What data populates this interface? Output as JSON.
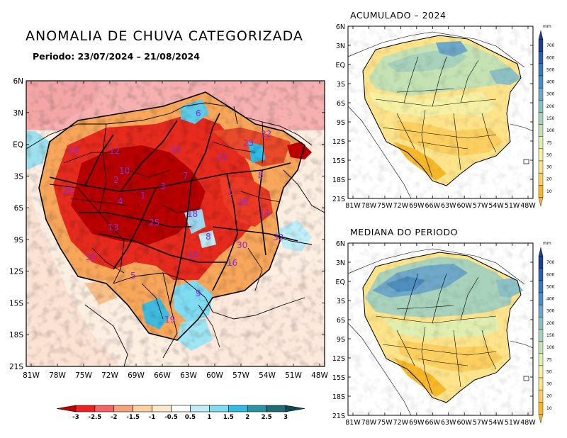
{
  "main_map": {
    "title": "ANOMALIA DE CHUVA CATEGORIZADA",
    "period": "Periodo: 23/07/2024 – 21/08/2024",
    "lat_ticks": [
      "6N",
      "3N",
      "EQ",
      "3S",
      "6S",
      "9S",
      "12S",
      "15S",
      "18S",
      "21S"
    ],
    "lon_ticks": [
      "81W",
      "78W",
      "75W",
      "72W",
      "69W",
      "66W",
      "63W",
      "60W",
      "57W",
      "54W",
      "51W",
      "48W"
    ],
    "basin_labels": [
      "6",
      "22",
      "12",
      "23",
      "24",
      "21",
      "23",
      "10",
      "8",
      "2",
      "26",
      "7",
      "3",
      "1",
      "4",
      "28",
      "11",
      "18",
      "13",
      "25",
      "8",
      "32",
      "30",
      "16",
      "31",
      "14",
      "5",
      "9",
      "19",
      "1"
    ],
    "colorbar": {
      "labels": [
        "-3",
        "-2.5",
        "-2",
        "-1.5",
        "-1",
        "-0.5",
        "0.5",
        "1",
        "1.5",
        "2",
        "2.5",
        "3"
      ],
      "colors": [
        "#c10000",
        "#ef2020",
        "#f46464",
        "#f6a37a",
        "#fbd0a0",
        "#ffe9c8",
        "#ffffff",
        "#bfeef8",
        "#7fdcf2",
        "#2fbde6",
        "#2994a6",
        "#1c6e74",
        "#0d4a50"
      ]
    }
  },
  "accumulated_map": {
    "title": "ACUMULADO – 2024",
    "lat_ticks": [
      "6N",
      "3N",
      "EQ",
      "3S",
      "6S",
      "9S",
      "12S",
      "15S",
      "18S",
      "21S"
    ],
    "lon_ticks": [
      "81W",
      "78W",
      "75W",
      "72W",
      "69W",
      "66W",
      "63W",
      "60W",
      "57W",
      "54W",
      "51W",
      "48W"
    ]
  },
  "median_map": {
    "title": "MEDIANA DO PERIODO",
    "lat_ticks": [
      "6N",
      "3N",
      "EQ",
      "3S",
      "6S",
      "9S",
      "12S",
      "15S",
      "18S",
      "21S"
    ],
    "lon_ticks": [
      "81W",
      "78W",
      "75W",
      "72W",
      "69W",
      "66W",
      "63W",
      "60W",
      "57W",
      "54W",
      "51W",
      "48W"
    ]
  },
  "precip_scale": {
    "unit": "mm",
    "labels": [
      "700",
      "600",
      "500",
      "400",
      "300",
      "200",
      "150",
      "100",
      "75",
      "50",
      "30",
      "20",
      "10"
    ],
    "colors": [
      "#1c3f8c",
      "#2c5fa8",
      "#3a78b8",
      "#4f8fc0",
      "#6fa8c8",
      "#8cc0c4",
      "#a8d2bc",
      "#c4e2b4",
      "#e0efb0",
      "#f5f0a4",
      "#fde48a",
      "#fcd060",
      "#f7b928"
    ]
  }
}
